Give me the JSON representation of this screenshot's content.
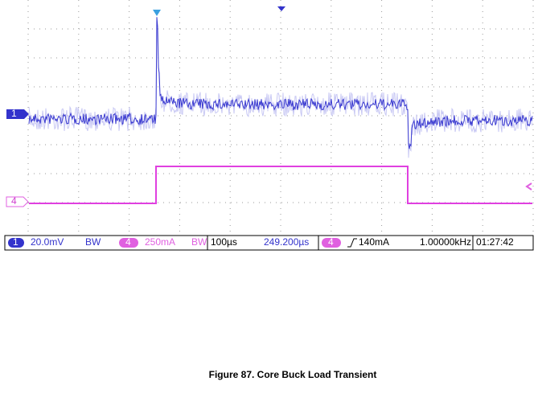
{
  "scope": {
    "channel_markers": [
      "1",
      "4"
    ],
    "status_bar": {
      "ch1_number": "1",
      "ch1_scale": "20.0mV",
      "ch1_bw": "BW",
      "ch4_number": "4",
      "ch4_scale": "250mA",
      "ch4_bw": "BW",
      "timebase": "100µs",
      "delay": "249.200µs",
      "trigger_channel": "4",
      "trigger_level": "140mA",
      "frequency": "1.00000kHz",
      "time": "01:27:42"
    }
  },
  "caption": "Figure 87. Core Buck Load Transient"
}
